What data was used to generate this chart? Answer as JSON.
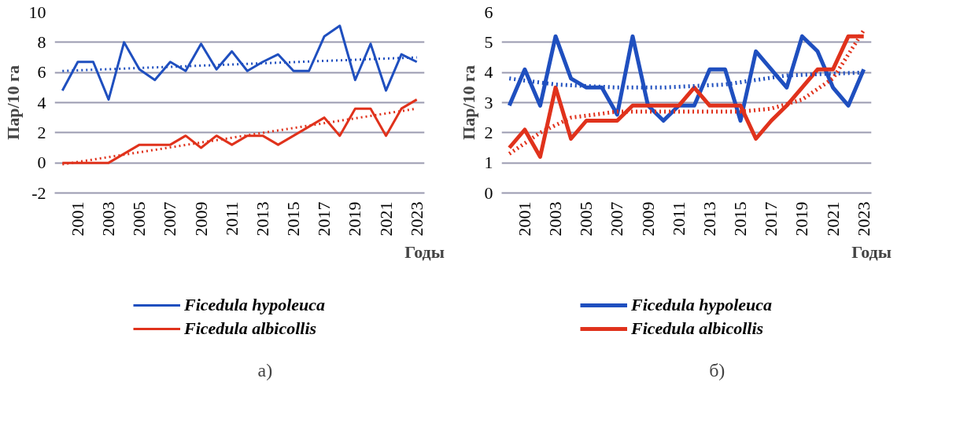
{
  "chart_data": [
    {
      "type": "line",
      "xlabel": "Годы",
      "ylabel": "Пар/10 га",
      "annotations": [
        "а)"
      ],
      "x": [
        2000,
        2001,
        2002,
        2003,
        2004,
        2005,
        2006,
        2007,
        2008,
        2009,
        2010,
        2011,
        2012,
        2013,
        2014,
        2015,
        2016,
        2017,
        2018,
        2019,
        2020,
        2021,
        2022,
        2023
      ],
      "xlim": [
        1999.5,
        2023.5
      ],
      "xticks": [
        2001,
        2003,
        2005,
        2007,
        2009,
        2011,
        2013,
        2015,
        2017,
        2019,
        2021,
        2023
      ],
      "ylim": [
        -2,
        10
      ],
      "yticks": [
        -2,
        0,
        2,
        4,
        6,
        8,
        10
      ],
      "grid": "y",
      "legend": "bottom",
      "marker": "none",
      "line_style": "solid",
      "series": [
        {
          "name": "Ficedula hypoleuca",
          "color": "#1f4fbf",
          "values": [
            4.8,
            6.7,
            6.7,
            4.2,
            8.0,
            6.2,
            5.5,
            6.7,
            6.1,
            7.9,
            6.2,
            7.4,
            6.1,
            6.7,
            7.2,
            6.1,
            6.1,
            8.4,
            9.1,
            5.5,
            7.9,
            4.8,
            7.2,
            6.7
          ]
        },
        {
          "name": "Ficedula albicollis",
          "color": "#e0321c",
          "values": [
            0,
            0,
            0,
            0,
            0.6,
            1.2,
            1.2,
            1.2,
            1.8,
            1.0,
            1.8,
            1.2,
            1.8,
            1.8,
            1.2,
            1.8,
            2.4,
            3.0,
            1.8,
            3.6,
            3.6,
            1.8,
            3.6,
            4.2
          ]
        },
        {
          "color": "#1f4fbf",
          "line_style": "dotted",
          "x": [
            2000,
            2023
          ],
          "values": [
            6.1,
            7.0
          ]
        },
        {
          "color": "#e0321c",
          "line_style": "dotted",
          "x": [
            2000,
            2023
          ],
          "values": [
            -0.1,
            3.6
          ]
        }
      ]
    },
    {
      "type": "line",
      "xlabel": "Годы",
      "ylabel": "Пар/10 га",
      "annotations": [
        "б)"
      ],
      "x": [
        2000,
        2001,
        2002,
        2003,
        2004,
        2005,
        2006,
        2007,
        2008,
        2009,
        2010,
        2011,
        2012,
        2013,
        2014,
        2015,
        2016,
        2017,
        2018,
        2019,
        2020,
        2021,
        2022,
        2023
      ],
      "xlim": [
        1999.5,
        2023.5
      ],
      "xticks": [
        2001,
        2003,
        2005,
        2007,
        2009,
        2011,
        2013,
        2015,
        2017,
        2019,
        2021,
        2023
      ],
      "ylim": [
        0,
        6
      ],
      "yticks": [
        0,
        1,
        2,
        3,
        4,
        5,
        6
      ],
      "grid": "y",
      "legend": "bottom",
      "marker": "none",
      "line_style": "solid",
      "series": [
        {
          "name": "Ficedula hypoleuca",
          "color": "#1f4fbf",
          "values": [
            2.9,
            4.1,
            2.9,
            5.2,
            3.8,
            3.5,
            3.5,
            2.6,
            5.2,
            2.9,
            2.4,
            2.9,
            2.9,
            4.1,
            4.1,
            2.4,
            4.7,
            4.1,
            3.5,
            5.2,
            4.7,
            3.5,
            2.9,
            4.1
          ]
        },
        {
          "name": "Ficedula albicollis",
          "color": "#e0321c",
          "values": [
            1.5,
            2.1,
            1.2,
            3.5,
            1.8,
            2.4,
            2.4,
            2.4,
            2.9,
            2.9,
            2.9,
            2.9,
            3.5,
            2.9,
            2.9,
            2.9,
            1.8,
            2.4,
            2.9,
            3.5,
            4.1,
            4.1,
            5.2,
            5.2
          ]
        },
        {
          "color": "#1f4fbf",
          "line_style": "dotted",
          "x": [
            2000,
            2003,
            2007,
            2010,
            2014,
            2018,
            2023
          ],
          "values": [
            3.8,
            3.6,
            3.5,
            3.5,
            3.6,
            3.9,
            4.0
          ]
        },
        {
          "color": "#e0321c",
          "line_style": "dotted",
          "x": [
            2000,
            2002,
            2004,
            2007,
            2010,
            2015,
            2017,
            2019,
            2021,
            2023
          ],
          "values": [
            1.3,
            2.0,
            2.5,
            2.7,
            2.7,
            2.7,
            2.8,
            3.1,
            3.8,
            5.4
          ]
        }
      ]
    }
  ]
}
